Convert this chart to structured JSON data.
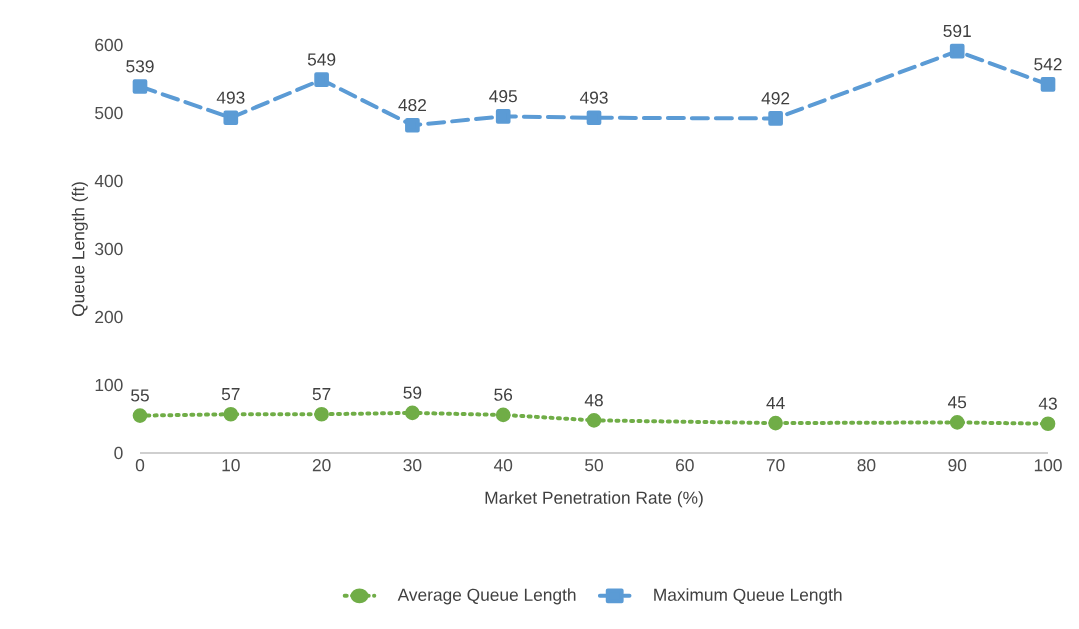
{
  "chart_data": {
    "type": "line",
    "xlabel": "Market Penetration Rate (%)",
    "ylabel": "Queue Length (ft)",
    "x": [
      0,
      10,
      20,
      30,
      40,
      50,
      70,
      90,
      100
    ],
    "series": [
      {
        "name": "Average Queue Length",
        "color": "#70ad47",
        "marker": "circle",
        "line_style": "dotted",
        "values": [
          55,
          57,
          57,
          59,
          56,
          48,
          44,
          45,
          43
        ]
      },
      {
        "name": "Maximum Queue Length",
        "color": "#5b9bd5",
        "marker": "square",
        "line_style": "dashed",
        "values": [
          539,
          493,
          549,
          482,
          495,
          493,
          492,
          591,
          542
        ]
      }
    ],
    "xlim": [
      0,
      100
    ],
    "xticks": [
      0,
      10,
      20,
      30,
      40,
      50,
      60,
      70,
      80,
      90,
      100
    ],
    "ylim": [
      0,
      600
    ],
    "yticks": [
      0,
      100,
      200,
      300,
      400,
      500,
      600
    ],
    "grid": false,
    "legend": "bottom",
    "data_labels": true
  }
}
